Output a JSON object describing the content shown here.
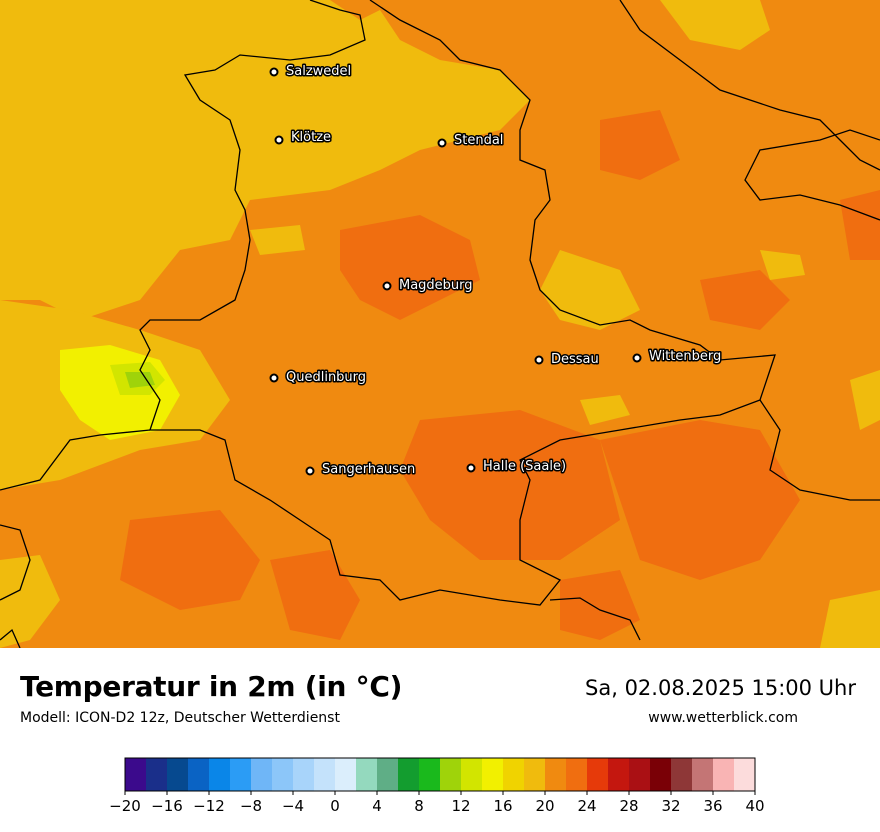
{
  "map": {
    "cities": [
      {
        "name": "Salzwedel"
      },
      {
        "name": "Klötze"
      },
      {
        "name": "Stendal"
      },
      {
        "name": "Magdeburg"
      },
      {
        "name": "Dessau"
      },
      {
        "name": "Wittenberg"
      },
      {
        "name": "Quedlinburg"
      },
      {
        "name": "Sangerhausen"
      },
      {
        "name": "Halle (Saale)"
      }
    ]
  },
  "header": {
    "title": "Temperatur in 2m (in °C)",
    "model": "Modell: ICON-D2 12z, Deutscher Wetterdienst",
    "datetime": "Sa, 02.08.2025 15:00 Uhr",
    "website": "www.wetterblick.com"
  },
  "legend": {
    "ticks": [
      "−20",
      "−16",
      "−12",
      "−8",
      "−4",
      "0",
      "4",
      "8",
      "12",
      "16",
      "20",
      "24",
      "28",
      "32",
      "36",
      "40"
    ],
    "colors": [
      "#3b0a8c",
      "#1a2f8a",
      "#06498f",
      "#0a63c4",
      "#0a86e8",
      "#2b9cf5",
      "#6fb6f7",
      "#8cc6f9",
      "#a8d4fa",
      "#c4e2fb",
      "#dbeefc",
      "#94d9be",
      "#5fae86",
      "#139d2f",
      "#1ab91c",
      "#9fd30a",
      "#d2e500",
      "#f2f000",
      "#f0d300",
      "#f0bb0d",
      "#f08a10",
      "#f06e10",
      "#e63a0a",
      "#c4170f",
      "#aa1014",
      "#7a0006",
      "#8e3737",
      "#c47575",
      "#f9b4b4",
      "#fcdcdc"
    ]
  },
  "colors": {
    "warm_dominant": "#f08a10",
    "warm_hot": "#f06e10",
    "mild_yellow": "#f0bb0d",
    "bright_yellow": "#f2f000"
  }
}
